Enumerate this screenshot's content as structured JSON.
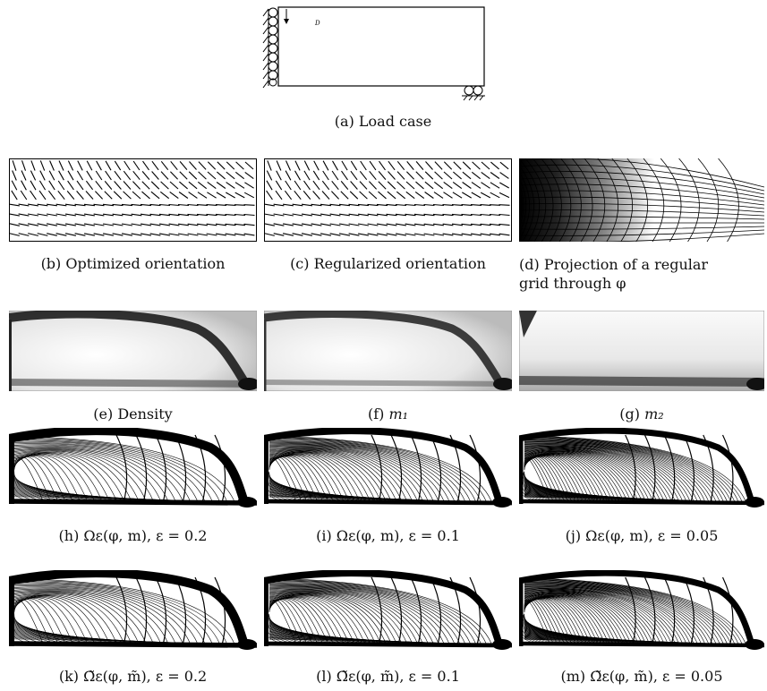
{
  "figure": {
    "load_case": {
      "caption": "(a) Load case",
      "force_label": "D"
    },
    "row1": [
      {
        "caption": "(b) Optimized orientation"
      },
      {
        "caption": "(c) Regularized orientation"
      },
      {
        "caption_line1": "(d) Projection of a regular",
        "caption_line2": "grid through φ"
      }
    ],
    "row2": [
      {
        "caption": "(e) Density"
      },
      {
        "caption_prefix": "(f) ",
        "caption_math": "m₁"
      },
      {
        "caption_prefix": "(g) ",
        "caption_math": "m₂"
      }
    ],
    "row3": [
      {
        "caption": "(h) Ωε(φ, m), ε = 0.2"
      },
      {
        "caption": "(i) Ωε(φ, m), ε = 0.1"
      },
      {
        "caption": "(j) Ωε(φ, m), ε = 0.05"
      }
    ],
    "row4": [
      {
        "caption": "(k) Ω̃ε(φ, m̃), ε = 0.2"
      },
      {
        "caption": "(l) Ω̃ε(φ, m̃), ε = 0.1"
      },
      {
        "caption": "(m) Ω̃ε(φ, m̃), ε = 0.05"
      }
    ]
  }
}
